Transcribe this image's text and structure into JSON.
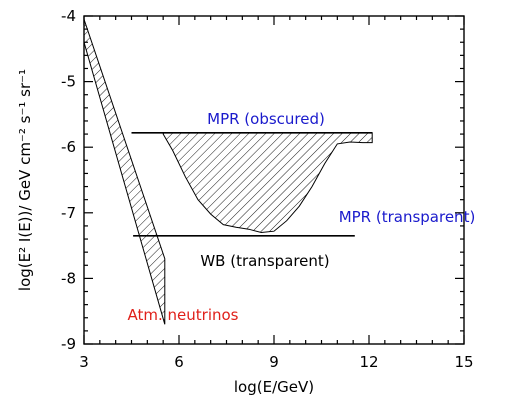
{
  "chart_data": {
    "type": "area",
    "xlabel": "log(E/GeV)",
    "ylabel": "log(E² I(E))/ GeV cm⁻² s⁻¹ sr⁻¹",
    "xlim": [
      3,
      15
    ],
    "ylim": [
      -9,
      -4
    ],
    "x_ticks": [
      "3",
      "6",
      "9",
      "12",
      "15"
    ],
    "y_ticks": [
      "-4",
      "-5",
      "-6",
      "-7",
      "-8",
      "-9"
    ],
    "grid": false,
    "series": [
      {
        "name": "MPR (obscured)",
        "kind": "line",
        "color": "#000000",
        "x": [
          4.5,
          12.1
        ],
        "y": [
          -5.78,
          -5.78
        ]
      },
      {
        "name": "MPR (transparent)",
        "kind": "band",
        "color": "#000000",
        "x": [
          5.5,
          5.8,
          6.2,
          6.6,
          7.0,
          7.4,
          7.8,
          8.2,
          8.6,
          9.0,
          9.4,
          9.8,
          10.2,
          10.6,
          11.0,
          11.4,
          11.8,
          12.1
        ],
        "y_upper": [
          -5.78,
          -5.78,
          -5.78,
          -5.78,
          -5.78,
          -5.78,
          -5.78,
          -5.78,
          -5.78,
          -5.78,
          -5.78,
          -5.78,
          -5.78,
          -5.78,
          -5.78,
          -5.78,
          -5.78,
          -5.78
        ],
        "y_lower": [
          -5.8,
          -6.05,
          -6.45,
          -6.8,
          -7.02,
          -7.18,
          -7.22,
          -7.25,
          -7.3,
          -7.28,
          -7.12,
          -6.9,
          -6.6,
          -6.25,
          -5.95,
          -5.92,
          -5.93,
          -5.93
        ]
      },
      {
        "name": "WB (transparent)",
        "kind": "line",
        "color": "#000000",
        "x": [
          4.55,
          11.55
        ],
        "y": [
          -7.35,
          -7.35
        ]
      },
      {
        "name": "Atm. neutrinos",
        "kind": "band",
        "color": "#000000",
        "x": [
          3.0,
          5.55
        ],
        "y_upper": [
          -4.05,
          -7.7
        ],
        "y_lower": [
          -4.4,
          -8.7
        ]
      }
    ],
    "annotations": [
      {
        "text": "MPR (obscured)",
        "color": "#1a1acc"
      },
      {
        "text": "MPR (transparent)",
        "color": "#1a1acc"
      },
      {
        "text": "WB (transparent)",
        "color": "#000000"
      },
      {
        "text": "Atm. neutrinos",
        "color": "#e0201a"
      }
    ]
  }
}
